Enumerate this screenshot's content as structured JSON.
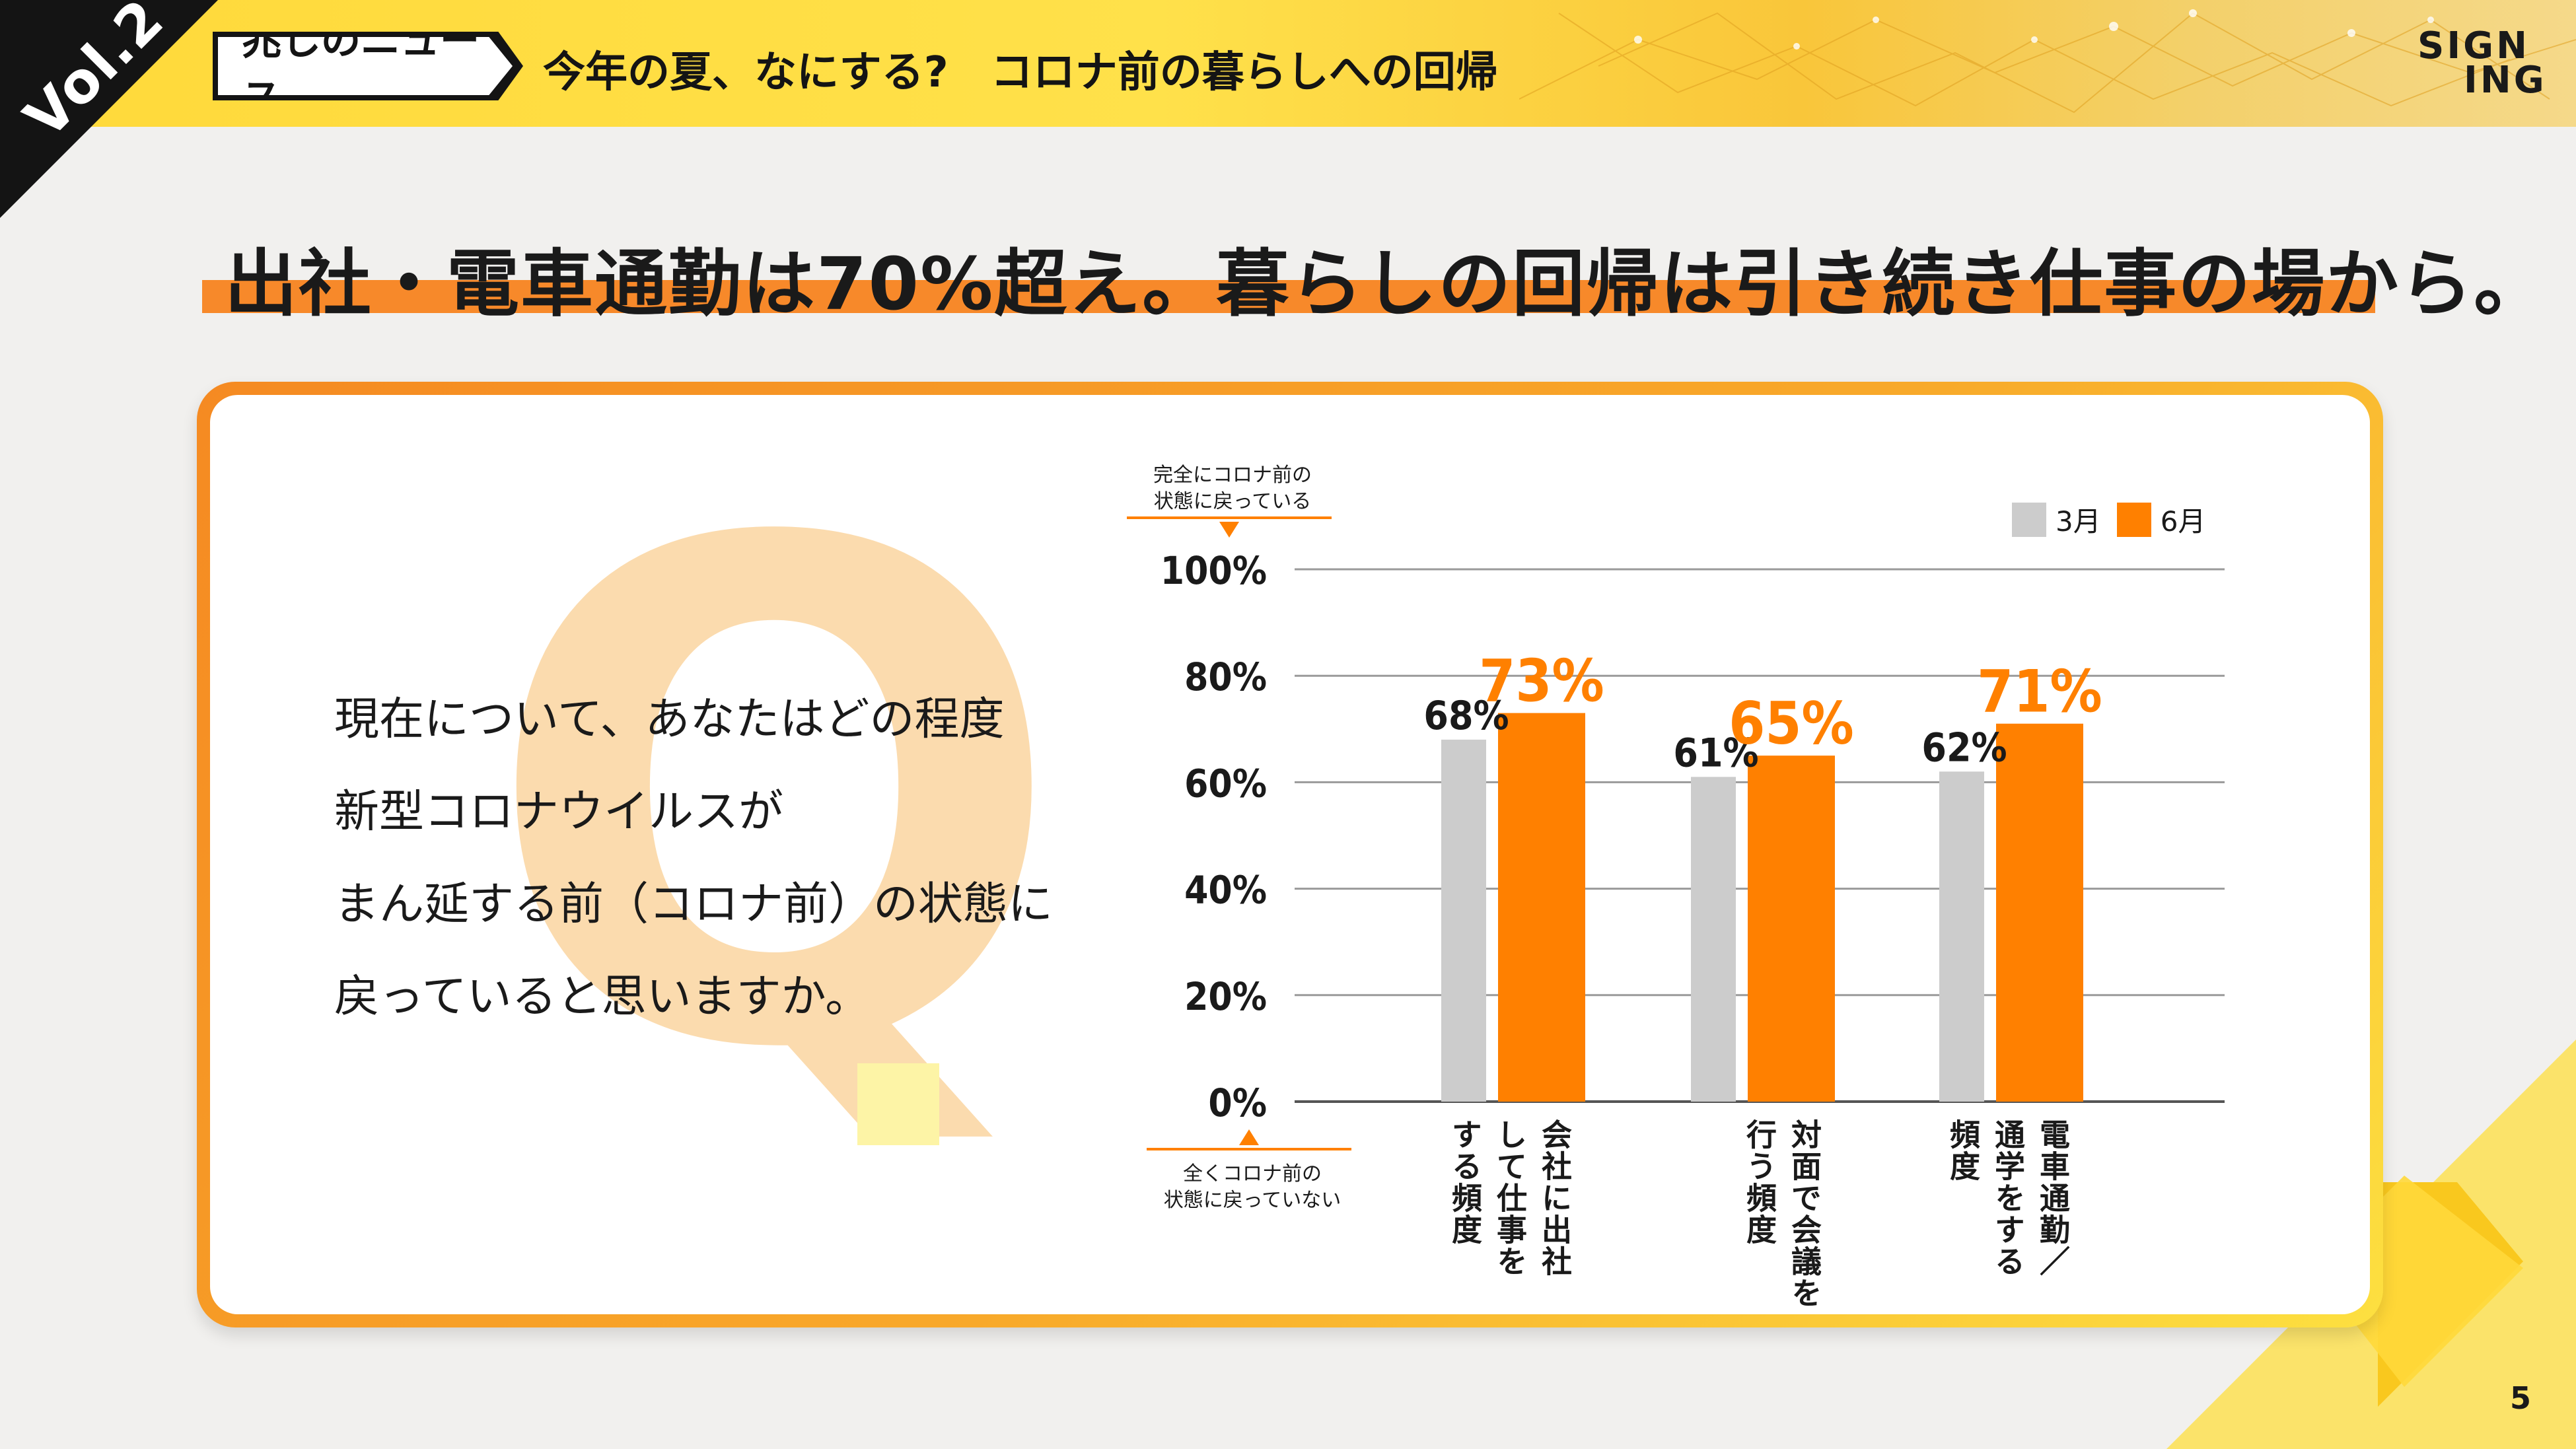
{
  "header": {
    "volume": "Vol.2",
    "series_tag": "兆しのニュース",
    "title": "今年の夏、なにする?　コロナ前の暮らしへの回帰",
    "brand_line1": "SIGN",
    "brand_line2": "ING"
  },
  "headline": "出社・電車通勤は70%超え。暮らしの回帰は引き続き仕事の場から。",
  "question": {
    "mark": "Q",
    "lines": [
      "現在について、あなたはどの程度",
      "新型コロナウイルスが",
      "まん延する前（コロナ前）の状態に",
      "戻っていると思いますか。"
    ]
  },
  "axis_notes": {
    "top_line1": "完全にコロナ前の",
    "top_line2": "状態に戻っている",
    "bottom_line1": "全くコロナ前の",
    "bottom_line2": "状態に戻っていない"
  },
  "legend": {
    "march": "3月",
    "june": "6月"
  },
  "colors": {
    "march": "#cccccc",
    "june": "#ff8000",
    "accent_orange": "#f7892a",
    "header_yellow": "#ffd93a"
  },
  "chart_data": {
    "type": "bar",
    "categories": [
      [
        "会社に出社",
        "して仕事を",
        "する頻度"
      ],
      [
        "対面で会議を",
        "行う頻度"
      ],
      [
        "電車通勤／",
        "通学をする",
        "頻度"
      ]
    ],
    "series": [
      {
        "name": "3月",
        "values": [
          68,
          61,
          62
        ],
        "labels": [
          "68%",
          "61%",
          "62%"
        ]
      },
      {
        "name": "6月",
        "values": [
          73,
          65,
          71
        ],
        "labels": [
          "73%",
          "65%",
          "71%"
        ]
      }
    ],
    "y_ticks": [
      "0%",
      "20%",
      "40%",
      "60%",
      "80%",
      "100%"
    ],
    "ylim": [
      0,
      100
    ],
    "grid": true,
    "legend": "top-right"
  },
  "page_number": "5"
}
